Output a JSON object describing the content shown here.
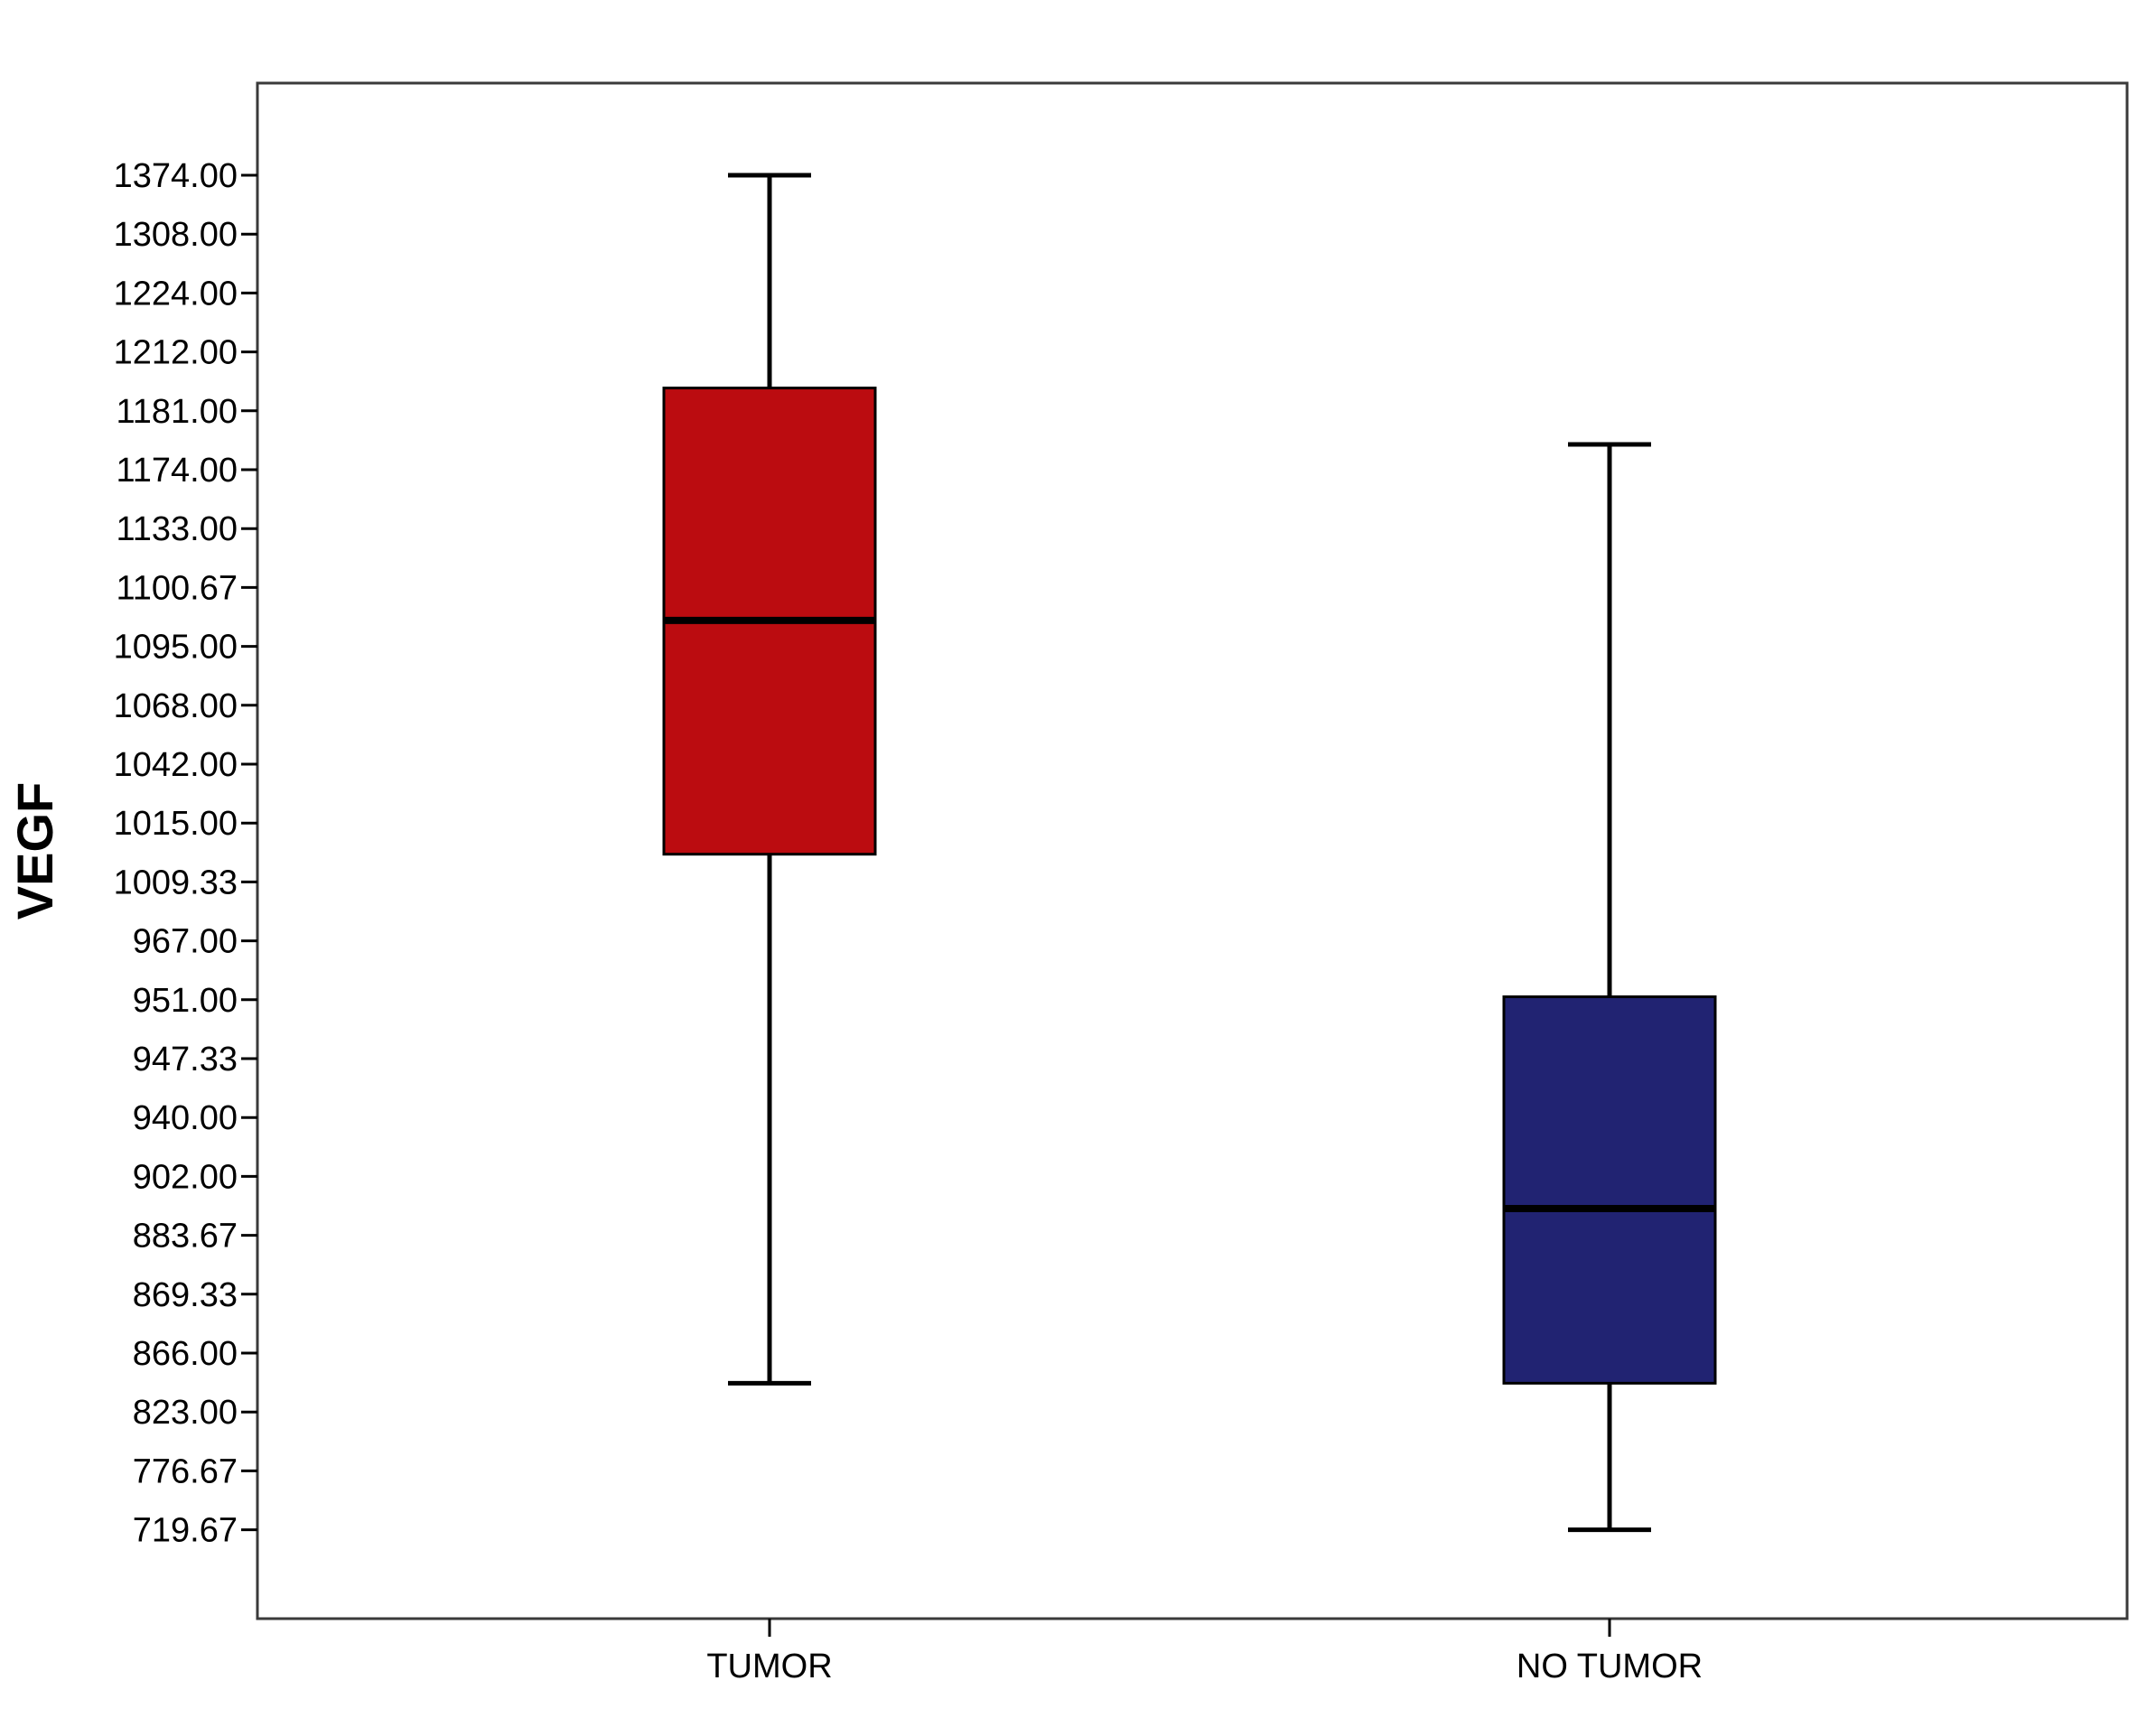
{
  "chart_data": {
    "type": "box",
    "ylabel": "VEGF",
    "xlabel": "",
    "categories": [
      "TUMOR",
      "NO TUMOR"
    ],
    "y_ticks": [
      "1374.00",
      "1308.00",
      "1224.00",
      "1212.00",
      "1181.00",
      "1174.00",
      "1133.00",
      "1100.67",
      "1095.00",
      "1068.00",
      "1042.00",
      "1015.00",
      "1009.33",
      "967.00",
      "951.00",
      "947.33",
      "940.00",
      "902.00",
      "883.67",
      "869.33",
      "866.00",
      "823.00",
      "776.67",
      "719.67"
    ],
    "y_scale": "categorical (tick labels evenly spaced, top to bottom)",
    "series": [
      {
        "category": "TUMOR",
        "whisker_high": 1374.0,
        "q3": 1193.0,
        "median": 1097.5,
        "q1": 1012.0,
        "whisker_low": 844.0,
        "color": "#bb0c10"
      },
      {
        "category": "NO TUMOR",
        "whisker_high": 1177.0,
        "q3": 951.8,
        "median": 892.0,
        "q1": 844.0,
        "whisker_low": 719.67,
        "color": "#212372"
      }
    ],
    "grid": false,
    "legend": "none"
  }
}
